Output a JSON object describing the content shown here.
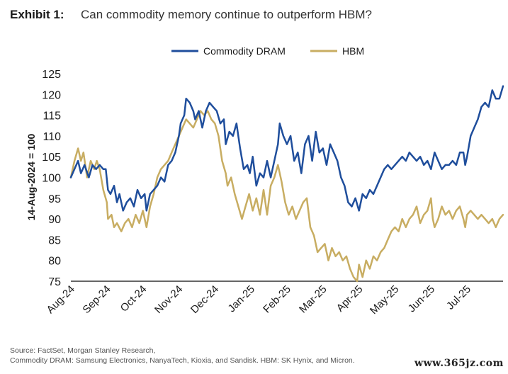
{
  "exhibit_label": "Exhibit 1:",
  "title": "Can commodity memory continue to outperform HBM?",
  "source": {
    "line1": "Source: FactSet, Morgan Stanley Research,",
    "line2": "Commodity DRAM: Samsung Electronics, NanyaTech, Kioxia, and Sandisk. HBM: SK Hynix, and Micron."
  },
  "watermark": "www.365jz.com",
  "colors": {
    "commodity_dram": "#1f4e9c",
    "hbm": "#c8ad62",
    "axis": "#333333"
  },
  "chart_data": {
    "type": "line",
    "ylabel": "14-Aug-2024 = 100",
    "xlabel": "",
    "ylim": [
      75,
      125
    ],
    "yticks": [
      75,
      80,
      85,
      90,
      95,
      100,
      105,
      110,
      115,
      120,
      125
    ],
    "xticks": [
      "Aug-24",
      "Sep-24",
      "Oct-24",
      "Nov-24",
      "Dec-24",
      "Jan-25",
      "Feb-25",
      "Mar-25",
      "Apr-25",
      "May-25",
      "Jun-25",
      "Jul-25"
    ],
    "xlim": [
      0,
      12
    ],
    "grid": false,
    "legend": "top-center",
    "series": [
      {
        "name": "Commodity DRAM",
        "points": [
          [
            0,
            100
          ],
          [
            0.1,
            102
          ],
          [
            0.2,
            104
          ],
          [
            0.28,
            101
          ],
          [
            0.38,
            103
          ],
          [
            0.5,
            100
          ],
          [
            0.6,
            103
          ],
          [
            0.7,
            102
          ],
          [
            0.8,
            103
          ],
          [
            0.9,
            102
          ],
          [
            0.97,
            102
          ],
          [
            1.03,
            97
          ],
          [
            1.1,
            96
          ],
          [
            1.2,
            98
          ],
          [
            1.28,
            94
          ],
          [
            1.35,
            96
          ],
          [
            1.45,
            92
          ],
          [
            1.55,
            94
          ],
          [
            1.65,
            95
          ],
          [
            1.75,
            93
          ],
          [
            1.85,
            97
          ],
          [
            1.95,
            95
          ],
          [
            2.05,
            96
          ],
          [
            2.1,
            92
          ],
          [
            2.2,
            96
          ],
          [
            2.3,
            97
          ],
          [
            2.4,
            98
          ],
          [
            2.5,
            100
          ],
          [
            2.6,
            99
          ],
          [
            2.7,
            103
          ],
          [
            2.8,
            104
          ],
          [
            2.9,
            106
          ],
          [
            3.0,
            110
          ],
          [
            3.05,
            113
          ],
          [
            3.15,
            115
          ],
          [
            3.2,
            119
          ],
          [
            3.3,
            118
          ],
          [
            3.4,
            116
          ],
          [
            3.45,
            114
          ],
          [
            3.55,
            116
          ],
          [
            3.65,
            112
          ],
          [
            3.75,
            116
          ],
          [
            3.85,
            118
          ],
          [
            3.95,
            117
          ],
          [
            4.05,
            116
          ],
          [
            4.15,
            113
          ],
          [
            4.25,
            114
          ],
          [
            4.3,
            108
          ],
          [
            4.4,
            111
          ],
          [
            4.5,
            110
          ],
          [
            4.6,
            113
          ],
          [
            4.7,
            107
          ],
          [
            4.8,
            102
          ],
          [
            4.9,
            103
          ],
          [
            4.97,
            101
          ],
          [
            5.05,
            105
          ],
          [
            5.15,
            98
          ],
          [
            5.25,
            101
          ],
          [
            5.35,
            100
          ],
          [
            5.45,
            104
          ],
          [
            5.55,
            100
          ],
          [
            5.65,
            104
          ],
          [
            5.75,
            108
          ],
          [
            5.8,
            113
          ],
          [
            5.9,
            110
          ],
          [
            6.0,
            108
          ],
          [
            6.1,
            110
          ],
          [
            6.2,
            104
          ],
          [
            6.3,
            106
          ],
          [
            6.4,
            101
          ],
          [
            6.5,
            108
          ],
          [
            6.6,
            110
          ],
          [
            6.7,
            104
          ],
          [
            6.8,
            111
          ],
          [
            6.9,
            106
          ],
          [
            7.0,
            107
          ],
          [
            7.1,
            103
          ],
          [
            7.2,
            108
          ],
          [
            7.3,
            106
          ],
          [
            7.4,
            104
          ],
          [
            7.5,
            100
          ],
          [
            7.6,
            98
          ],
          [
            7.7,
            94
          ],
          [
            7.8,
            93
          ],
          [
            7.9,
            95
          ],
          [
            8.0,
            92
          ],
          [
            8.05,
            94
          ],
          [
            8.1,
            96
          ],
          [
            8.2,
            95
          ],
          [
            8.3,
            97
          ],
          [
            8.4,
            96
          ],
          [
            8.5,
            98
          ],
          [
            8.6,
            100
          ],
          [
            8.7,
            102
          ],
          [
            8.8,
            103
          ],
          [
            8.9,
            102
          ],
          [
            9.0,
            103
          ],
          [
            9.1,
            104
          ],
          [
            9.2,
            105
          ],
          [
            9.3,
            104
          ],
          [
            9.4,
            106
          ],
          [
            9.5,
            105
          ],
          [
            9.6,
            104
          ],
          [
            9.7,
            105
          ],
          [
            9.8,
            103
          ],
          [
            9.9,
            104
          ],
          [
            10.0,
            102
          ],
          [
            10.1,
            106
          ],
          [
            10.2,
            104
          ],
          [
            10.3,
            102
          ],
          [
            10.4,
            103
          ],
          [
            10.5,
            103
          ],
          [
            10.6,
            104
          ],
          [
            10.7,
            103
          ],
          [
            10.8,
            106
          ],
          [
            10.9,
            106
          ],
          [
            10.95,
            103
          ],
          [
            11.0,
            105
          ],
          [
            11.1,
            110
          ],
          [
            11.2,
            112
          ],
          [
            11.3,
            114
          ],
          [
            11.4,
            117
          ],
          [
            11.5,
            118
          ],
          [
            11.6,
            117
          ],
          [
            11.7,
            121
          ],
          [
            11.8,
            119
          ],
          [
            11.9,
            119
          ],
          [
            12.0,
            122
          ]
        ]
      },
      {
        "name": "HBM",
        "points": [
          [
            0,
            100
          ],
          [
            0.1,
            104
          ],
          [
            0.2,
            107
          ],
          [
            0.28,
            104
          ],
          [
            0.35,
            106
          ],
          [
            0.45,
            100
          ],
          [
            0.55,
            104
          ],
          [
            0.65,
            102
          ],
          [
            0.72,
            104
          ],
          [
            0.8,
            102
          ],
          [
            0.9,
            97
          ],
          [
            1.0,
            94
          ],
          [
            1.03,
            90
          ],
          [
            1.13,
            91
          ],
          [
            1.2,
            88
          ],
          [
            1.28,
            89
          ],
          [
            1.4,
            87
          ],
          [
            1.5,
            89
          ],
          [
            1.6,
            90
          ],
          [
            1.7,
            88
          ],
          [
            1.8,
            91
          ],
          [
            1.9,
            89
          ],
          [
            2.0,
            92
          ],
          [
            2.1,
            88
          ],
          [
            2.2,
            93
          ],
          [
            2.3,
            96
          ],
          [
            2.4,
            100
          ],
          [
            2.5,
            102
          ],
          [
            2.6,
            103
          ],
          [
            2.7,
            104
          ],
          [
            2.8,
            106
          ],
          [
            2.9,
            108
          ],
          [
            3.0,
            110
          ],
          [
            3.1,
            112
          ],
          [
            3.2,
            114
          ],
          [
            3.3,
            113
          ],
          [
            3.4,
            112
          ],
          [
            3.5,
            114
          ],
          [
            3.6,
            116
          ],
          [
            3.7,
            115
          ],
          [
            3.8,
            116
          ],
          [
            3.9,
            114
          ],
          [
            4.0,
            113
          ],
          [
            4.1,
            110
          ],
          [
            4.2,
            104
          ],
          [
            4.3,
            101
          ],
          [
            4.35,
            98
          ],
          [
            4.45,
            100
          ],
          [
            4.55,
            96
          ],
          [
            4.65,
            93
          ],
          [
            4.75,
            90
          ],
          [
            4.85,
            93
          ],
          [
            4.95,
            96
          ],
          [
            5.05,
            92
          ],
          [
            5.15,
            95
          ],
          [
            5.25,
            91
          ],
          [
            5.35,
            97
          ],
          [
            5.45,
            91
          ],
          [
            5.55,
            98
          ],
          [
            5.65,
            100
          ],
          [
            5.75,
            103
          ],
          [
            5.85,
            99
          ],
          [
            5.95,
            94
          ],
          [
            6.05,
            91
          ],
          [
            6.15,
            93
          ],
          [
            6.25,
            90
          ],
          [
            6.35,
            92
          ],
          [
            6.45,
            94
          ],
          [
            6.55,
            95
          ],
          [
            6.65,
            88
          ],
          [
            6.75,
            86
          ],
          [
            6.85,
            82
          ],
          [
            6.95,
            83
          ],
          [
            7.05,
            84
          ],
          [
            7.15,
            80
          ],
          [
            7.25,
            83
          ],
          [
            7.35,
            81
          ],
          [
            7.45,
            82
          ],
          [
            7.55,
            80
          ],
          [
            7.65,
            81
          ],
          [
            7.75,
            78
          ],
          [
            7.85,
            76
          ],
          [
            7.95,
            75
          ],
          [
            8.0,
            79
          ],
          [
            8.1,
            76
          ],
          [
            8.2,
            80
          ],
          [
            8.3,
            78
          ],
          [
            8.4,
            81
          ],
          [
            8.5,
            80
          ],
          [
            8.6,
            82
          ],
          [
            8.7,
            83
          ],
          [
            8.8,
            85
          ],
          [
            8.9,
            87
          ],
          [
            9.0,
            88
          ],
          [
            9.1,
            87
          ],
          [
            9.2,
            90
          ],
          [
            9.3,
            88
          ],
          [
            9.4,
            90
          ],
          [
            9.5,
            91
          ],
          [
            9.6,
            93
          ],
          [
            9.7,
            89
          ],
          [
            9.8,
            91
          ],
          [
            9.9,
            92
          ],
          [
            10.0,
            95
          ],
          [
            10.05,
            90
          ],
          [
            10.1,
            88
          ],
          [
            10.2,
            90
          ],
          [
            10.3,
            93
          ],
          [
            10.4,
            91
          ],
          [
            10.5,
            92
          ],
          [
            10.6,
            90
          ],
          [
            10.7,
            92
          ],
          [
            10.8,
            93
          ],
          [
            10.9,
            90
          ],
          [
            10.95,
            88
          ],
          [
            11.0,
            91
          ],
          [
            11.1,
            92
          ],
          [
            11.2,
            91
          ],
          [
            11.3,
            90
          ],
          [
            11.4,
            91
          ],
          [
            11.5,
            90
          ],
          [
            11.6,
            89
          ],
          [
            11.7,
            90
          ],
          [
            11.8,
            88
          ],
          [
            11.9,
            90
          ],
          [
            12.0,
            91
          ]
        ]
      }
    ]
  }
}
